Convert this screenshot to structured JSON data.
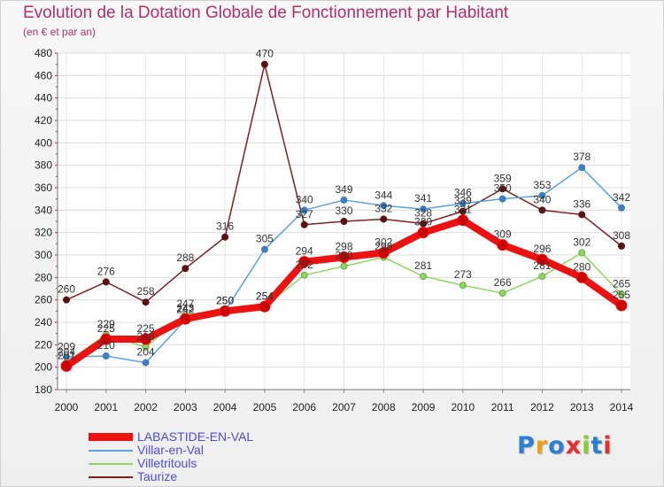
{
  "header": {
    "title": "Evolution de la Dotation Globale de Fonctionnement par Habitant",
    "subtitle": "(en € et par an)"
  },
  "logo": {
    "text": "Proxiti"
  },
  "chart_data": {
    "type": "line",
    "title": "Evolution de la Dotation Globale de Fonctionnement par Habitant",
    "ylabel": "(en € et par an)",
    "xlabel": "",
    "ylim": [
      180,
      480
    ],
    "yticks": [
      180,
      200,
      220,
      240,
      260,
      280,
      300,
      320,
      340,
      360,
      380,
      400,
      420,
      440,
      460,
      480
    ],
    "grid": true,
    "categories": [
      "2000",
      "2001",
      "2002",
      "2003",
      "2004",
      "2005",
      "2006",
      "2007",
      "2008",
      "2009",
      "2010",
      "2011",
      "2012",
      "2013",
      "2014"
    ],
    "series": [
      {
        "name": "Taurize",
        "color": "#7a2020",
        "values": [
          260,
          276,
          258,
          288,
          316,
          470,
          327,
          330,
          332,
          328,
          339,
          359,
          340,
          336,
          308
        ]
      },
      {
        "name": "Villar-en-Val",
        "color": "#5ba3d9",
        "values": [
          209,
          210,
          204,
          242,
          250,
          305,
          340,
          349,
          344,
          341,
          346,
          350,
          353,
          378,
          342
        ]
      },
      {
        "name": "Villetritouls",
        "color": "#8ed65e",
        "values": [
          204,
          229,
          218,
          247,
          250,
          254,
          282,
          290,
          298,
          281,
          273,
          266,
          281,
          302,
          265
        ]
      },
      {
        "name": "LABASTIDE-EN-VAL",
        "color": "#ee1111",
        "values": [
          201,
          225,
          225,
          243,
          250,
          254,
          294,
          298,
          302,
          320,
          331,
          309,
          296,
          280,
          255
        ]
      }
    ],
    "legend_order": [
      "LABASTIDE-EN-VAL",
      "Villar-en-Val",
      "Villetritouls",
      "Taurize"
    ],
    "legend_position": "bottom-left"
  }
}
